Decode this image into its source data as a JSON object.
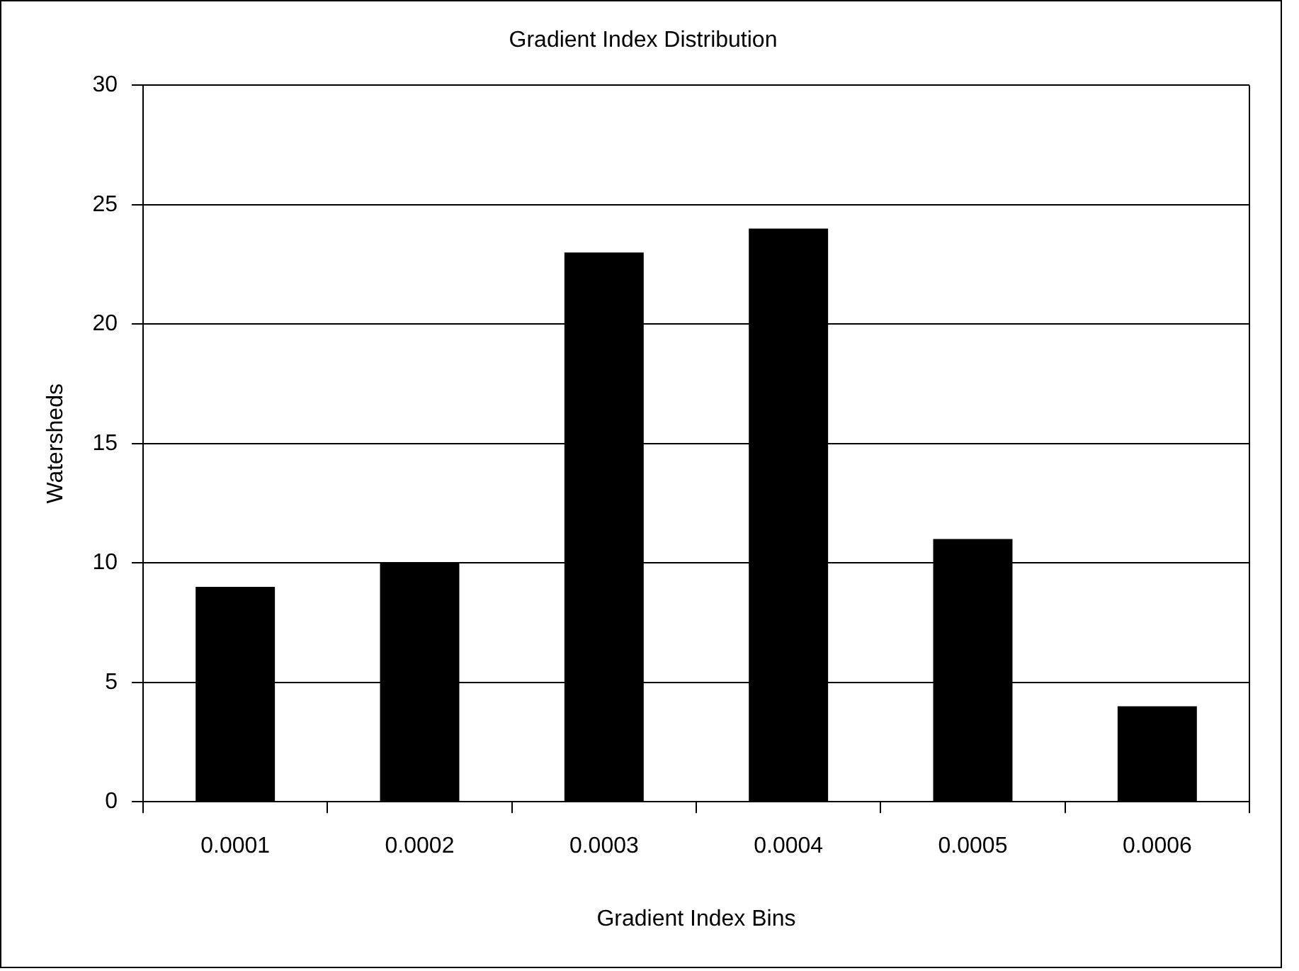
{
  "chart_data": {
    "type": "bar",
    "title": "Gradient Index Distribution",
    "xlabel": "Gradient Index Bins",
    "ylabel": "Watersheds",
    "categories": [
      "0.0001",
      "0.0002",
      "0.0003",
      "0.0004",
      "0.0005",
      "0.0006"
    ],
    "values": [
      9,
      10,
      23,
      24,
      11,
      4
    ],
    "color": "#000000",
    "ylim": [
      0,
      30
    ],
    "yticks": [
      0,
      5,
      10,
      15,
      20,
      25,
      30
    ],
    "grid": "y",
    "legend": false
  }
}
